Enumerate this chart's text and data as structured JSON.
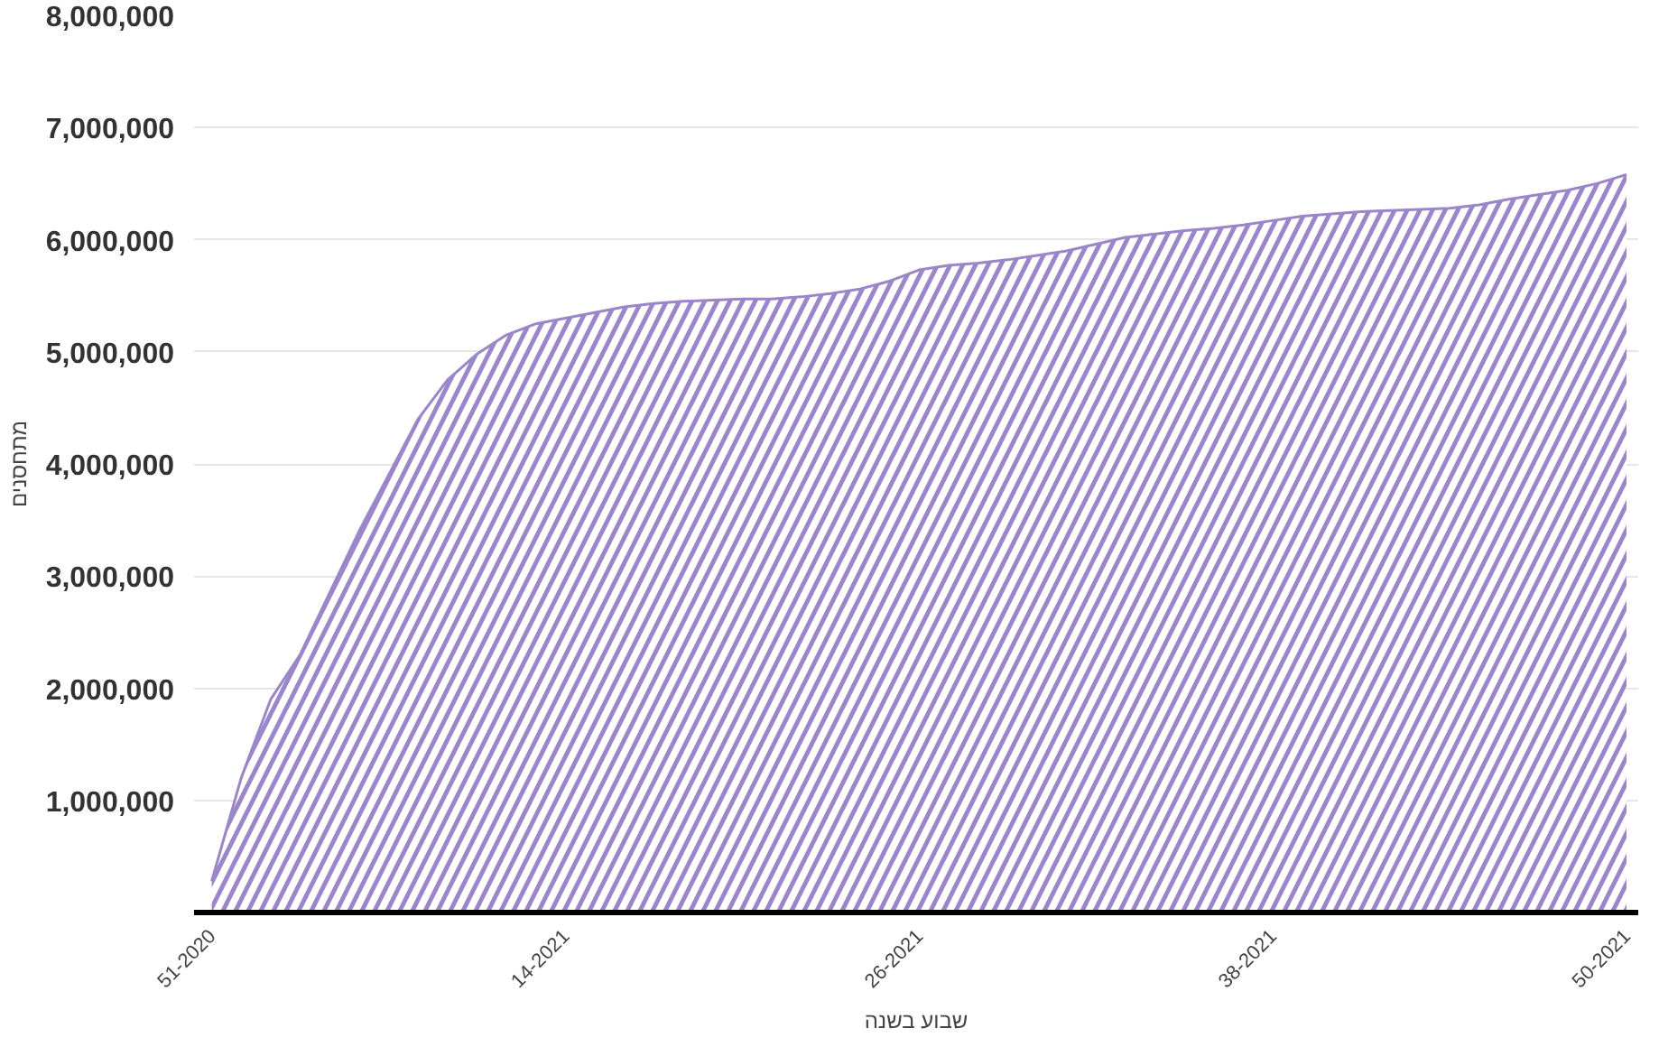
{
  "chart_data": {
    "type": "area",
    "xlabel": "שבוע בשנה",
    "ylabel": "מתחסנים",
    "categories": [
      "51-2020",
      null,
      null,
      null,
      null,
      null,
      null,
      null,
      null,
      null,
      null,
      null,
      "14-2021",
      null,
      null,
      null,
      null,
      null,
      null,
      null,
      null,
      null,
      null,
      null,
      "26-2021",
      null,
      null,
      null,
      null,
      null,
      null,
      null,
      null,
      null,
      null,
      null,
      "38-2021",
      null,
      null,
      null,
      null,
      null,
      null,
      null,
      null,
      null,
      null,
      null,
      "50-2021"
    ],
    "series": [
      {
        "color": "#9b86c9",
        "values": [
          280000,
          1200000,
          1900000,
          2300000,
          2850000,
          3400000,
          3900000,
          4400000,
          4750000,
          4980000,
          5150000,
          5250000,
          5300000,
          5350000,
          5400000,
          5430000,
          5450000,
          5460000,
          5470000,
          5470000,
          5490000,
          5520000,
          5560000,
          5630000,
          5730000,
          5770000,
          5790000,
          5820000,
          5860000,
          5900000,
          5960000,
          6020000,
          6050000,
          6080000,
          6100000,
          6130000,
          6170000,
          6210000,
          6230000,
          6250000,
          6260000,
          6270000,
          6280000,
          6310000,
          6360000,
          6400000,
          6440000,
          6500000,
          6580000
        ]
      }
    ],
    "ylim": [
      0,
      8000000
    ],
    "yticks": [
      {
        "value": 1000000,
        "label": "1,000,000"
      },
      {
        "value": 2000000,
        "label": "2,000,000"
      },
      {
        "value": 3000000,
        "label": "3,000,000"
      },
      {
        "value": 4000000,
        "label": "4,000,000"
      },
      {
        "value": 5000000,
        "label": "5,000,000"
      },
      {
        "value": 6000000,
        "label": "6,000,000"
      },
      {
        "value": 7000000,
        "label": "7,000,000"
      },
      {
        "value": 8000000,
        "label": "8,000,000"
      }
    ],
    "grid": "y"
  }
}
